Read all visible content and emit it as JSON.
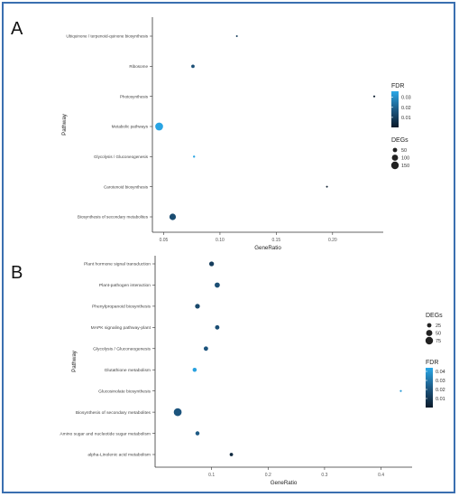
{
  "chart_data": [
    {
      "panel": "A",
      "type": "scatter",
      "xlabel": "GeneRatio",
      "ylabel": "Pathway",
      "xlim": [
        0.04,
        0.245
      ],
      "xticks": [
        "0.05",
        "0.10",
        "0.15",
        "0.20"
      ],
      "xtick_values": [
        0.05,
        0.1,
        0.15,
        0.2
      ],
      "categories": [
        "Ubiquinone / terpenoid-quinone biosynthesis",
        "Ribosome",
        "Photosynthesis",
        "Metabolic pathways",
        "Glycolysis / Gluconeogenesis",
        "Carotenoid biosynthesis",
        "Biosynthesis of secondary metabolites"
      ],
      "points": [
        {
          "pathway": "Ubiquinone / terpenoid-quinone biosynthesis",
          "x": 0.115,
          "degs": 3,
          "fdr": 0.01
        },
        {
          "pathway": "Ribosome",
          "x": 0.076,
          "degs": 30,
          "fdr": 0.015
        },
        {
          "pathway": "Photosynthesis",
          "x": 0.237,
          "degs": 10,
          "fdr": 0.001
        },
        {
          "pathway": "Metabolic pathways",
          "x": 0.046,
          "degs": 160,
          "fdr": 0.035
        },
        {
          "pathway": "Glycolysis / Gluconeogenesis",
          "x": 0.077,
          "degs": 12,
          "fdr": 0.035
        },
        {
          "pathway": "Carotenoid biosynthesis",
          "x": 0.195,
          "degs": 8,
          "fdr": 0.001
        },
        {
          "pathway": "Biosynthesis of secondary metabolites",
          "x": 0.058,
          "degs": 110,
          "fdr": 0.014
        }
      ],
      "legend_fdr": {
        "title": "FDR",
        "ticks": [
          "0.03",
          "0.02",
          "0.01"
        ],
        "tick_values": [
          0.03,
          0.02,
          0.01
        ],
        "range": [
          0.0,
          0.036
        ]
      },
      "legend_size": {
        "title": "DEGs",
        "labels": [
          "50",
          "100",
          "150"
        ],
        "values": [
          50,
          100,
          150
        ]
      },
      "legend_placement": "right",
      "grid": false
    },
    {
      "panel": "B",
      "type": "scatter",
      "xlabel": "GeneRatio",
      "ylabel": "Pathway",
      "xlim": [
        0.0,
        0.455
      ],
      "xticks": [
        "0.1",
        "0.2",
        "0.3",
        "0.4"
      ],
      "xtick_values": [
        0.1,
        0.2,
        0.3,
        0.4
      ],
      "categories": [
        "Plant hormone signal transduction",
        "Plant-pathogen interaction",
        "Phenylpropanoid biosynthesis",
        "MAPK signaling pathway-plant",
        "Glycolysis / Gluconeogenesis",
        "Glutathione metabolism",
        "Glucosinolate biosynthesis",
        "Biosynthesis of secondary metabolites",
        "Amino sugar and nucleotide sugar metabolism",
        "alpha-Linolenic acid metabolism"
      ],
      "points": [
        {
          "pathway": "Plant hormone signal transduction",
          "x": 0.1,
          "degs": 30,
          "fdr": 0.012
        },
        {
          "pathway": "Plant-pathogen interaction",
          "x": 0.11,
          "degs": 35,
          "fdr": 0.018
        },
        {
          "pathway": "Phenylpropanoid biosynthesis",
          "x": 0.075,
          "degs": 30,
          "fdr": 0.016
        },
        {
          "pathway": "MAPK signaling pathway-plant",
          "x": 0.11,
          "degs": 25,
          "fdr": 0.018
        },
        {
          "pathway": "Glycolysis / Gluconeogenesis",
          "x": 0.09,
          "degs": 25,
          "fdr": 0.02
        },
        {
          "pathway": "Glutathione metabolism",
          "x": 0.07,
          "degs": 22,
          "fdr": 0.042
        },
        {
          "pathway": "Glucosinolate biosynthesis",
          "x": 0.435,
          "degs": 5,
          "fdr": 0.04
        },
        {
          "pathway": "Biosynthesis of secondary metabolites",
          "x": 0.04,
          "degs": 80,
          "fdr": 0.02
        },
        {
          "pathway": "Amino sugar and nucleotide sugar metabolism",
          "x": 0.075,
          "degs": 22,
          "fdr": 0.022
        },
        {
          "pathway": "alpha-Linolenic acid metabolism",
          "x": 0.135,
          "degs": 15,
          "fdr": 0.005
        }
      ],
      "legend_size": {
        "title": "DEGs",
        "labels": [
          "25",
          "50",
          "75"
        ],
        "values": [
          25,
          50,
          75
        ]
      },
      "legend_fdr": {
        "title": "FDR",
        "ticks": [
          "0.04",
          "0.03",
          "0.02",
          "0.01"
        ],
        "tick_values": [
          0.04,
          0.03,
          0.02,
          0.01
        ],
        "range": [
          0.0,
          0.044
        ]
      },
      "legend_placement": "right",
      "grid": false
    }
  ],
  "colors": {
    "fdr_low": "#0b1a2a",
    "fdr_mid": "#1e5a85",
    "fdr_high": "#2aa8e8",
    "frame": "#3a6fb0",
    "axis": "#333333"
  }
}
